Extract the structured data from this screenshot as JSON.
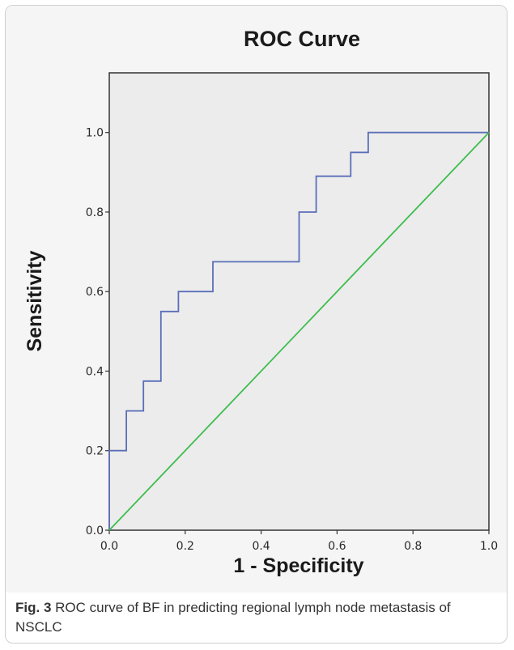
{
  "chart_data": {
    "type": "line",
    "title": "ROC Curve",
    "xlabel": "1 - Specificity",
    "ylabel": "Sensitivity",
    "xlim": [
      0.0,
      1.0
    ],
    "ylim": [
      0.0,
      1.15
    ],
    "x_ticks": [
      "0.0",
      "0.2",
      "0.4",
      "0.6",
      "0.8",
      "1.0"
    ],
    "y_ticks": [
      "0.0",
      "0.2",
      "0.4",
      "0.6",
      "0.8",
      "1.0"
    ],
    "grid": false,
    "series": [
      {
        "color": "#5a6fb8",
        "points": [
          [
            0.0,
            0.0
          ],
          [
            0.0,
            0.2
          ],
          [
            0.045,
            0.2
          ],
          [
            0.045,
            0.3
          ],
          [
            0.09,
            0.3
          ],
          [
            0.09,
            0.375
          ],
          [
            0.136,
            0.375
          ],
          [
            0.136,
            0.55
          ],
          [
            0.182,
            0.55
          ],
          [
            0.182,
            0.6
          ],
          [
            0.273,
            0.6
          ],
          [
            0.273,
            0.675
          ],
          [
            0.5,
            0.675
          ],
          [
            0.5,
            0.8
          ],
          [
            0.545,
            0.8
          ],
          [
            0.545,
            0.89
          ],
          [
            0.636,
            0.89
          ],
          [
            0.636,
            0.95
          ],
          [
            0.682,
            0.95
          ],
          [
            0.682,
            1.0
          ],
          [
            1.0,
            1.0
          ]
        ]
      },
      {
        "color": "#3cbd4e",
        "points": [
          [
            0.0,
            0.0
          ],
          [
            1.0,
            1.0
          ]
        ]
      }
    ]
  },
  "caption": {
    "label": "Fig. 3",
    "text": " ROC curve of BF in predicting regional lymph node metastasis of NSCLC"
  }
}
